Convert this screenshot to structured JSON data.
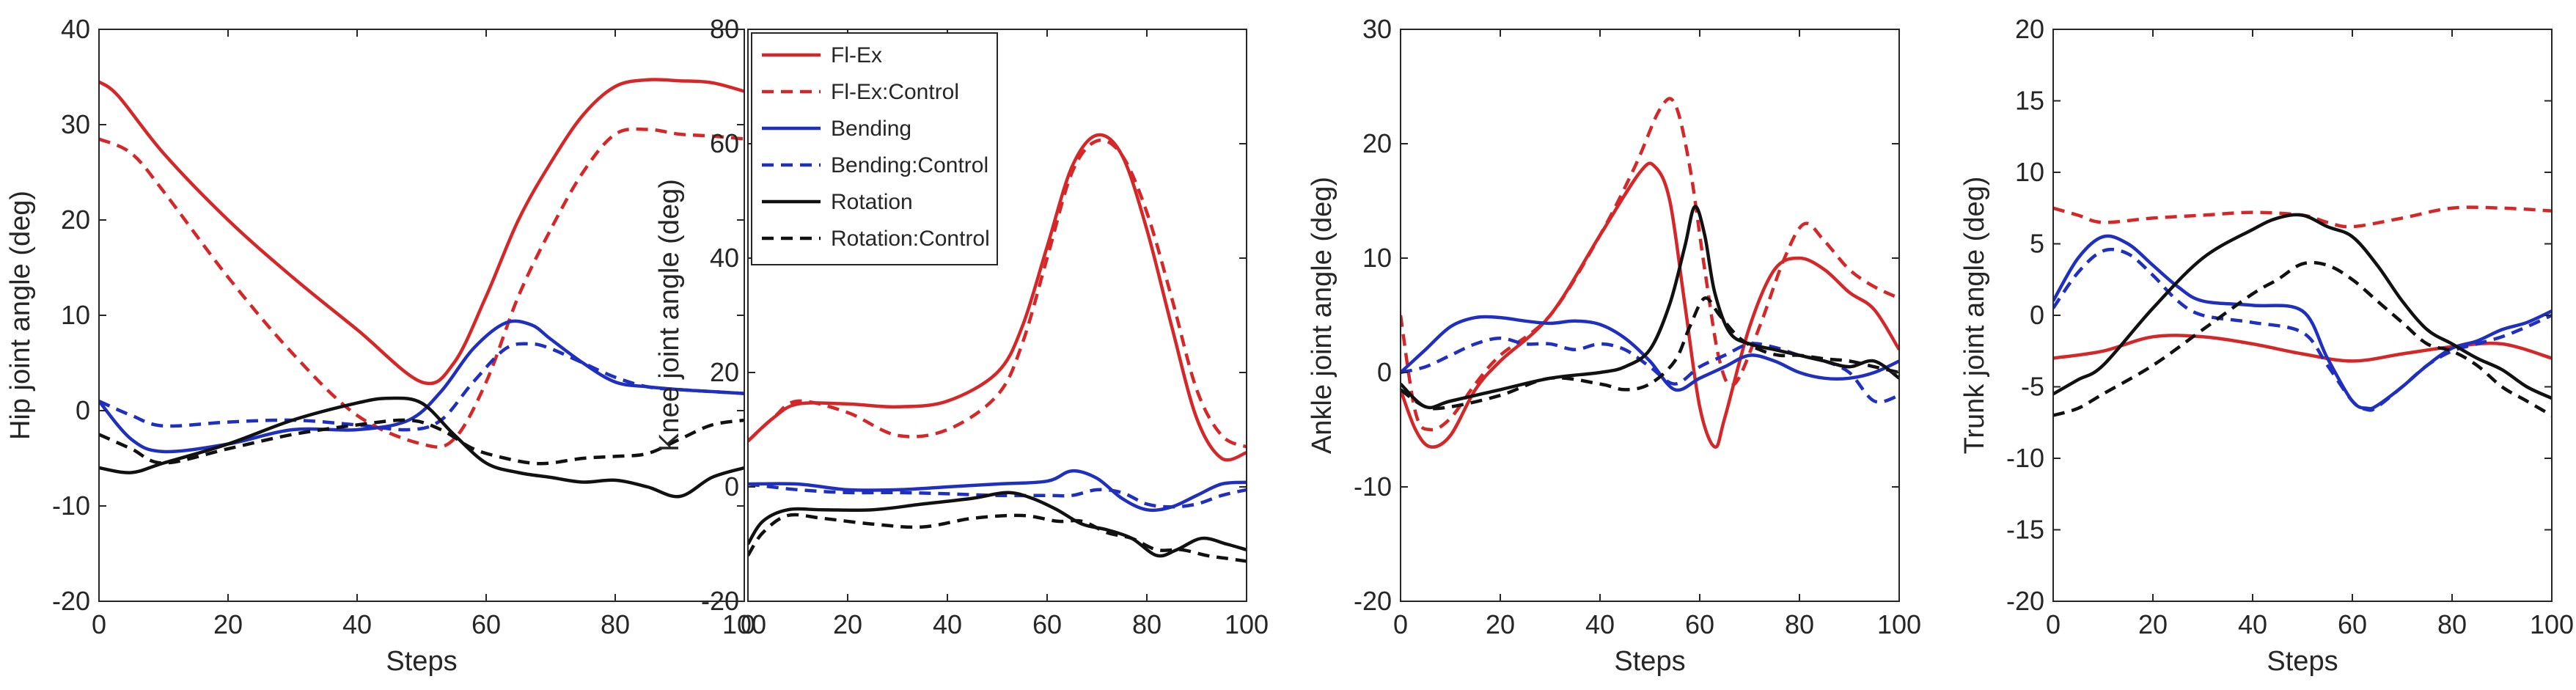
{
  "legend": {
    "entries": [
      {
        "name": "Fl-Ex",
        "color": "#d62728",
        "dash": false
      },
      {
        "name": "Fl-Ex:Control",
        "color": "#d62728",
        "dash": true
      },
      {
        "name": "Bending",
        "color": "#1f2fbf",
        "dash": false
      },
      {
        "name": "Bending:Control",
        "color": "#1f2fbf",
        "dash": true
      },
      {
        "name": "Rotation",
        "color": "#111111",
        "dash": false
      },
      {
        "name": "Rotation:Control",
        "color": "#111111",
        "dash": true
      }
    ]
  },
  "chart_data": [
    {
      "type": "line",
      "xlabel": "Steps",
      "ylabel": "Hip joint angle (deg)",
      "xlim": [
        0,
        100
      ],
      "ylim": [
        -20,
        40
      ],
      "xticks": [
        0,
        20,
        40,
        60,
        80,
        100
      ],
      "yticks": [
        -20,
        -10,
        0,
        10,
        20,
        30,
        40
      ],
      "series": [
        {
          "name": "Fl-Ex",
          "x": [
            0,
            3,
            10,
            20,
            30,
            40,
            50,
            55,
            60,
            65,
            70,
            75,
            80,
            85,
            90,
            95,
            100
          ],
          "y": [
            34.5,
            33,
            27,
            20,
            14,
            8.5,
            3,
            5,
            12,
            20,
            26,
            31,
            34,
            34.7,
            34.6,
            34.4,
            33.5
          ]
        },
        {
          "name": "Fl-Ex:Control",
          "x": [
            0,
            5,
            10,
            20,
            30,
            40,
            50,
            55,
            60,
            65,
            70,
            75,
            80,
            85,
            90,
            95,
            100
          ],
          "y": [
            28.5,
            27,
            23,
            14,
            6,
            -0.5,
            -3.5,
            -3,
            3,
            12,
            19,
            25,
            29,
            29.5,
            29,
            28.8,
            28.5
          ]
        },
        {
          "name": "Bending",
          "x": [
            0,
            5,
            10,
            20,
            30,
            40,
            48,
            53,
            58,
            63,
            67,
            70,
            75,
            80,
            85,
            90,
            95,
            100
          ],
          "y": [
            1,
            -3,
            -4.3,
            -3.5,
            -2,
            -2,
            -1,
            2,
            6.5,
            9.2,
            9,
            7.5,
            5,
            3,
            2.5,
            2.2,
            2,
            1.8
          ]
        },
        {
          "name": "Bending:Control",
          "x": [
            0,
            5,
            10,
            20,
            30,
            40,
            48,
            53,
            58,
            63,
            67,
            70,
            75,
            80,
            85,
            90,
            95,
            100
          ],
          "y": [
            1,
            -0.5,
            -1.6,
            -1.2,
            -1,
            -1.5,
            -2,
            -1,
            3,
            6.5,
            7,
            6.5,
            5,
            3.5,
            2.5,
            2.2,
            2,
            1.8
          ]
        },
        {
          "name": "Rotation",
          "x": [
            0,
            5,
            10,
            20,
            30,
            40,
            45,
            50,
            55,
            60,
            65,
            70,
            75,
            80,
            85,
            90,
            95,
            100
          ],
          "y": [
            -6,
            -6.5,
            -5.5,
            -3.5,
            -1,
            0.8,
            1.3,
            0.8,
            -2.5,
            -5.5,
            -6.5,
            -7,
            -7.5,
            -7.3,
            -8,
            -9,
            -7,
            -6
          ]
        },
        {
          "name": "Rotation:Control",
          "x": [
            0,
            5,
            10,
            20,
            30,
            40,
            48,
            53,
            58,
            63,
            67,
            70,
            75,
            80,
            85,
            90,
            95,
            100
          ],
          "y": [
            -2.5,
            -4,
            -5.5,
            -4,
            -2.5,
            -1.5,
            -1,
            -2,
            -4,
            -5,
            -5.5,
            -5.5,
            -5,
            -4.8,
            -4.5,
            -3,
            -1.5,
            -1
          ]
        }
      ]
    },
    {
      "type": "line",
      "xlabel": "",
      "ylabel": "Knee joint angle (deg)",
      "xlim": [
        0,
        100
      ],
      "ylim": [
        -20,
        80
      ],
      "xticks": [
        0,
        20,
        40,
        60,
        80,
        100
      ],
      "yticks": [
        -20,
        0,
        20,
        40,
        60,
        80
      ],
      "series": [
        {
          "name": "Fl-Ex",
          "x": [
            0,
            5,
            10,
            20,
            30,
            40,
            50,
            55,
            60,
            65,
            70,
            75,
            80,
            85,
            90,
            95,
            100
          ],
          "y": [
            8,
            12,
            14.5,
            14.5,
            14,
            15,
            20,
            28,
            42,
            56,
            61.5,
            58,
            45,
            28,
            12,
            5,
            6
          ]
        },
        {
          "name": "Fl-Ex:Control",
          "x": [
            0,
            5,
            10,
            20,
            30,
            40,
            50,
            55,
            60,
            65,
            70,
            75,
            80,
            85,
            90,
            95,
            100
          ],
          "y": [
            8,
            12,
            15,
            13,
            9,
            10,
            16,
            25,
            40,
            55,
            60.5,
            58,
            48,
            33,
            17,
            9,
            7
          ]
        },
        {
          "name": "Bending",
          "x": [
            0,
            10,
            20,
            30,
            40,
            50,
            60,
            65,
            70,
            75,
            80,
            85,
            90,
            95,
            100
          ],
          "y": [
            0.5,
            0.5,
            -0.5,
            -0.5,
            0,
            0.5,
            1,
            2.8,
            1.5,
            -2,
            -4,
            -3.5,
            -1.5,
            0.5,
            0.8
          ]
        },
        {
          "name": "Bending:Control",
          "x": [
            0,
            10,
            20,
            30,
            40,
            50,
            60,
            65,
            70,
            75,
            80,
            85,
            90,
            95,
            100
          ],
          "y": [
            0.5,
            -0.5,
            -1,
            -1,
            -1.2,
            -1.5,
            -1.5,
            -1.5,
            -0.5,
            -1,
            -3,
            -3.5,
            -3,
            -1.5,
            -0.5
          ]
        },
        {
          "name": "Rotation",
          "x": [
            0,
            3,
            8,
            15,
            25,
            35,
            45,
            52,
            57,
            62,
            67,
            72,
            77,
            82,
            86,
            91,
            96,
            100
          ],
          "y": [
            -10,
            -6,
            -4,
            -4,
            -4,
            -3,
            -2,
            -1,
            -2,
            -4,
            -6.5,
            -7.5,
            -9,
            -12,
            -11,
            -9,
            -10,
            -11
          ]
        },
        {
          "name": "Rotation:Control",
          "x": [
            0,
            3,
            8,
            15,
            25,
            35,
            45,
            55,
            62,
            67,
            72,
            77,
            82,
            87,
            92,
            96,
            100
          ],
          "y": [
            -12,
            -8,
            -5,
            -5.5,
            -6.5,
            -7,
            -5.5,
            -5,
            -6,
            -6,
            -8,
            -9,
            -11,
            -11,
            -12,
            -12.5,
            -13
          ]
        }
      ]
    },
    {
      "type": "line",
      "xlabel": "Steps",
      "ylabel": "Ankle joint angle (deg)",
      "xlim": [
        0,
        100
      ],
      "ylim": [
        -20,
        30
      ],
      "xticks": [
        0,
        20,
        40,
        60,
        80,
        100
      ],
      "yticks": [
        -20,
        -10,
        0,
        10,
        20,
        30
      ],
      "series": [
        {
          "name": "Fl-Ex",
          "x": [
            0,
            3,
            6,
            10,
            15,
            20,
            30,
            40,
            48,
            51,
            54,
            57,
            60,
            63,
            65,
            70,
            75,
            80,
            85,
            90,
            95,
            100
          ],
          "y": [
            -1.5,
            -5,
            -6.5,
            -5.5,
            -1.5,
            1,
            5,
            12,
            17.5,
            18,
            15,
            6,
            -3,
            -6.5,
            -4,
            4,
            9,
            10,
            9,
            7,
            5.5,
            2
          ]
        },
        {
          "name": "Fl-Ex:Control",
          "x": [
            0,
            3,
            6,
            10,
            15,
            20,
            30,
            40,
            47,
            52,
            55,
            58,
            61,
            64,
            67,
            72,
            77,
            81,
            85,
            90,
            95,
            100
          ],
          "y": [
            5,
            -3.5,
            -5,
            -4,
            -1,
            1.5,
            5,
            12,
            18,
            23,
            23.5,
            18,
            9,
            1,
            -1,
            4,
            10,
            13,
            11.5,
            9,
            7.5,
            6.5
          ]
        },
        {
          "name": "Bending",
          "x": [
            0,
            5,
            10,
            15,
            20,
            25,
            30,
            35,
            40,
            45,
            50,
            55,
            60,
            65,
            70,
            75,
            80,
            85,
            90,
            95,
            100
          ],
          "y": [
            0,
            2,
            4,
            4.8,
            4.8,
            4.5,
            4.3,
            4.5,
            4.2,
            3,
            1,
            -1.5,
            -0.5,
            0.5,
            1.5,
            1,
            0,
            -0.5,
            -0.5,
            0,
            1
          ]
        },
        {
          "name": "Bending:Control",
          "x": [
            0,
            5,
            10,
            15,
            20,
            25,
            30,
            35,
            40,
            45,
            50,
            55,
            60,
            65,
            70,
            75,
            80,
            85,
            90,
            95,
            100
          ],
          "y": [
            0,
            0.5,
            1.5,
            2.5,
            3,
            2.5,
            2.5,
            2,
            2.5,
            2,
            0.5,
            -1,
            0.5,
            1.5,
            2.5,
            2.2,
            1.5,
            1,
            0,
            -2.5,
            -2
          ]
        },
        {
          "name": "Rotation",
          "x": [
            0,
            5,
            10,
            20,
            30,
            40,
            45,
            50,
            54,
            57,
            59,
            61,
            63,
            66,
            70,
            75,
            80,
            85,
            90,
            95,
            100
          ],
          "y": [
            -1,
            -3,
            -2.5,
            -1.5,
            -0.5,
            0,
            0.5,
            2,
            6,
            11,
            14.5,
            12,
            7,
            3.5,
            2.5,
            2,
            1.5,
            1,
            0.5,
            1,
            -0.5
          ]
        },
        {
          "name": "Rotation:Control",
          "x": [
            0,
            5,
            10,
            20,
            30,
            40,
            45,
            50,
            55,
            58,
            61,
            64,
            68,
            72,
            76,
            80,
            85,
            90,
            95,
            100
          ],
          "y": [
            -1.5,
            -3,
            -3,
            -2,
            -0.5,
            -1,
            -1.5,
            -1,
            1,
            4,
            6.5,
            5,
            3,
            2,
            1.5,
            1.5,
            1.2,
            1,
            0.5,
            0
          ]
        }
      ]
    },
    {
      "type": "line",
      "xlabel": "Steps",
      "ylabel": "Trunk joint angle (deg)",
      "xlim": [
        0,
        100
      ],
      "ylim": [
        -20,
        20
      ],
      "xticks": [
        0,
        20,
        40,
        60,
        80,
        100
      ],
      "yticks": [
        -20,
        -15,
        -10,
        -5,
        0,
        5,
        10,
        15,
        20
      ],
      "series": [
        {
          "name": "Fl-Ex",
          "x": [
            0,
            10,
            20,
            30,
            40,
            50,
            60,
            70,
            80,
            90,
            100
          ],
          "y": [
            -3,
            -2.5,
            -1.5,
            -1.5,
            -2,
            -2.7,
            -3.2,
            -2.7,
            -2.2,
            -2,
            -3
          ]
        },
        {
          "name": "Fl-Ex:Control",
          "x": [
            0,
            5,
            10,
            20,
            30,
            40,
            50,
            55,
            60,
            70,
            80,
            90,
            100
          ],
          "y": [
            7.5,
            7,
            6.5,
            6.8,
            7,
            7.2,
            7,
            6.5,
            6.2,
            6.8,
            7.5,
            7.5,
            7.3
          ]
        },
        {
          "name": "Bending",
          "x": [
            0,
            5,
            10,
            15,
            20,
            25,
            30,
            40,
            50,
            55,
            60,
            63,
            65,
            70,
            75,
            80,
            85,
            90,
            95,
            100
          ],
          "y": [
            1,
            4,
            5.5,
            5,
            3.5,
            2,
            1,
            0.7,
            0.3,
            -3,
            -6,
            -6.5,
            -6.3,
            -5,
            -3.5,
            -2.3,
            -1.8,
            -1,
            -0.5,
            0.3
          ]
        },
        {
          "name": "Bending:Control",
          "x": [
            0,
            5,
            10,
            15,
            20,
            25,
            30,
            40,
            50,
            55,
            60,
            63,
            65,
            70,
            75,
            80,
            85,
            90,
            95,
            100
          ],
          "y": [
            0.5,
            3,
            4.5,
            4.3,
            2.8,
            1,
            0,
            -0.5,
            -1.2,
            -3.5,
            -6,
            -6.6,
            -6.4,
            -5,
            -3.5,
            -2.5,
            -2,
            -1.5,
            -0.8,
            0
          ]
        },
        {
          "name": "Rotation",
          "x": [
            0,
            5,
            10,
            20,
            30,
            40,
            45,
            50,
            55,
            60,
            65,
            70,
            75,
            80,
            85,
            90,
            95,
            100
          ],
          "y": [
            -5.5,
            -4.5,
            -3.5,
            0.5,
            4,
            6,
            6.8,
            7,
            6.2,
            5.5,
            3.5,
            1,
            -1,
            -2,
            -3,
            -3.8,
            -5,
            -5.8
          ]
        },
        {
          "name": "Rotation:Control",
          "x": [
            0,
            5,
            10,
            20,
            30,
            40,
            45,
            50,
            55,
            60,
            65,
            70,
            75,
            80,
            85,
            90,
            95,
            100
          ],
          "y": [
            -7,
            -6.5,
            -5.5,
            -3.5,
            -1,
            1.5,
            2.5,
            3.6,
            3.5,
            2.5,
            1,
            -0.5,
            -2,
            -2.5,
            -3.5,
            -5,
            -6,
            -7
          ]
        }
      ]
    }
  ]
}
